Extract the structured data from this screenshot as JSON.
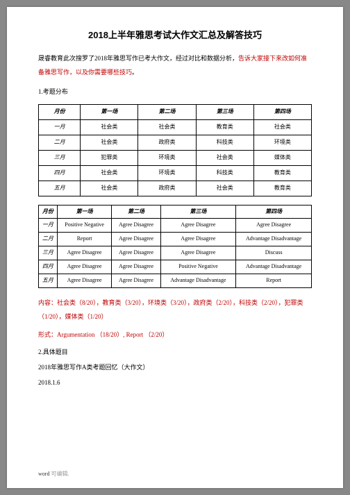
{
  "title": "2018上半年雅思考试大作文汇总及解答技巧",
  "intro_part1": "晟睿教育此次搜罗了2018年雅思写作已考大作文，经过对比和数据分析，",
  "intro_part2": "告诉大家接下来改如何准备雅思写作，以及你需要哪些技巧",
  "intro_part3": "。",
  "section1": "1.考题分布",
  "table1": {
    "headers": [
      "月份",
      "第一场",
      "第二场",
      "第三场",
      "第四场"
    ],
    "rows": [
      [
        "一月",
        "社会类",
        "社会类",
        "教育类",
        "社会类"
      ],
      [
        "二月",
        "社会类",
        "政府类",
        "科技类",
        "环境类"
      ],
      [
        "三月",
        "犯罪类",
        "环境类",
        "社会类",
        "媒体类"
      ],
      [
        "四月",
        "社会类",
        "环境类",
        "科技类",
        "教育类"
      ],
      [
        "五月",
        "社会类",
        "政府类",
        "社会类",
        "教育类"
      ]
    ]
  },
  "table2": {
    "headers": [
      "月份",
      "第一场",
      "第二场",
      "第三场",
      "第四场"
    ],
    "rows": [
      [
        "一月",
        "Positive Negative",
        "Agree Disagree",
        "Agree Disagree",
        "Agree Disagree"
      ],
      [
        "二月",
        "Report",
        "Agree Disagree",
        "Agree Disagree",
        "Advantage Disadvantage"
      ],
      [
        "三月",
        "Agree Disagree",
        "Agree Disagree",
        "Agree Disagree",
        "Discuss"
      ],
      [
        "四月",
        "Agree Disagree",
        "Agree Disagree",
        "Positive Negative",
        "Advantage Disadvantage"
      ],
      [
        "五月",
        "Agree Disagree",
        "Agree Disagree",
        "Advantage Disadvantage",
        "Report"
      ]
    ]
  },
  "red1": "内容：社会类（8/20），教育类（3/20），环境类（3/20），政府类（2/20），科技类（2/20），犯罪类（1/20），媒体类（1/20）",
  "red2": "形式：Argumentation （18/20）, Report （2/20）",
  "section2": "2.具体题目",
  "line1": "2018年雅思写作A类考题回忆（大作文）",
  "line2": "2018.1.6",
  "footer_word": "word",
  "footer_gray": " 可编辑."
}
